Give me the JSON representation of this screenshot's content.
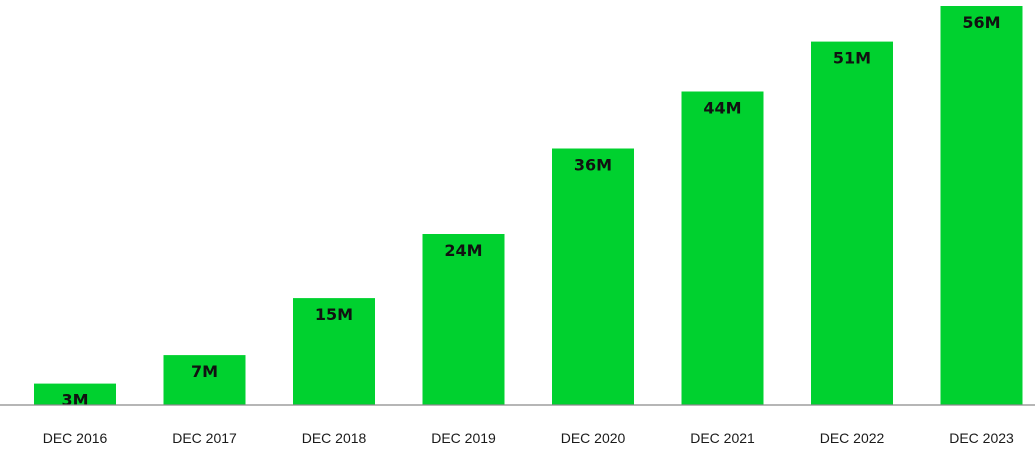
{
  "chart_data": {
    "type": "bar",
    "categories": [
      "DEC 2016",
      "DEC 2017",
      "DEC 2018",
      "DEC 2019",
      "DEC 2020",
      "DEC 2021",
      "DEC 2022",
      "DEC 2023"
    ],
    "values": [
      3,
      7,
      15,
      24,
      36,
      44,
      51,
      56
    ],
    "data_labels": [
      "3M",
      "7M",
      "15M",
      "24M",
      "36M",
      "44M",
      "51M",
      "56M"
    ],
    "title": "",
    "xlabel": "",
    "ylabel": "",
    "ylim": [
      0,
      56
    ],
    "grid": false,
    "legend": "none",
    "colors": {
      "bar": "#00d12f",
      "baseline": "#8a8a8a",
      "label_text": "#111111",
      "tick_text": "#1a1a1a"
    }
  }
}
